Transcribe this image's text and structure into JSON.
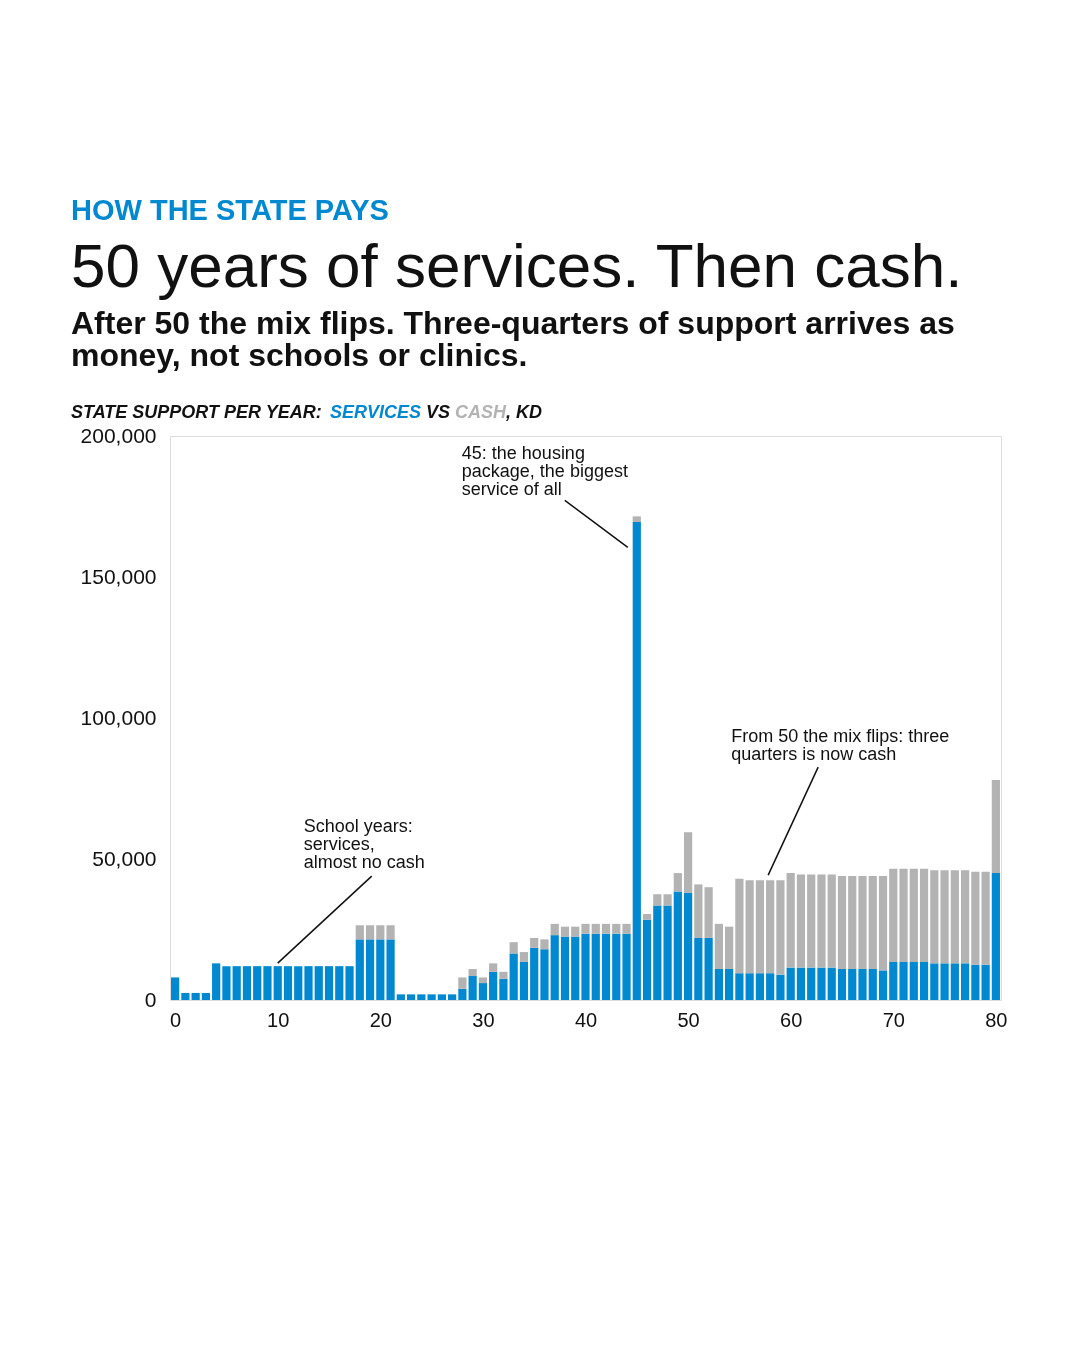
{
  "chart_data": {
    "type": "bar",
    "stacked": true,
    "title": "50 years of services. Then cash.",
    "subtitle": "After 50 the mix flips. Three-quarters of support arrives as\nmoney, not schools or clinics.",
    "ylabel": "STATE SUPPORT PER YEAR:",
    "legend": "top left",
    "x": [
      0,
      1,
      2,
      3,
      4,
      5,
      6,
      7,
      8,
      9,
      10,
      11,
      12,
      13,
      14,
      15,
      16,
      17,
      18,
      19,
      20,
      21,
      22,
      23,
      24,
      25,
      26,
      27,
      28,
      29,
      30,
      31,
      32,
      33,
      34,
      35,
      36,
      37,
      38,
      39,
      40,
      41,
      42,
      43,
      44,
      45,
      46,
      47,
      48,
      49,
      50,
      51,
      52,
      53,
      54,
      55,
      56,
      57,
      58,
      59,
      60,
      61,
      62,
      63,
      64,
      65,
      66,
      67,
      68,
      69,
      70,
      71,
      72,
      73,
      74,
      75,
      76,
      77,
      78,
      79,
      80
    ],
    "xlim": [
      -0.5,
      80.5
    ],
    "xticks": [
      0,
      10,
      20,
      30,
      40,
      50,
      60,
      70,
      80
    ],
    "ylim": [
      0,
      200000
    ],
    "yticks": [
      0,
      {
        "value": 50000,
        "label": "50,000"
      },
      {
        "value": 100000,
        "label": "100,000"
      },
      {
        "value": 150000,
        "label": "150,000"
      },
      {
        "value": 200000,
        "label": "200,000"
      }
    ],
    "series": [
      {
        "name": "SERVICES",
        "color": "#0088d1",
        "values": [
          8000,
          2500,
          2500,
          2500,
          13000,
          12000,
          12000,
          12000,
          12000,
          12000,
          12000,
          12000,
          12000,
          12000,
          12000,
          12000,
          12000,
          12000,
          21500,
          21500,
          21500,
          21500,
          2000,
          2000,
          2000,
          2000,
          2000,
          2000,
          4000,
          8500,
          6000,
          10000,
          7500,
          16500,
          13500,
          18500,
          18000,
          23000,
          22500,
          22500,
          23500,
          23500,
          23500,
          23500,
          23500,
          169500,
          28500,
          33500,
          33500,
          38500,
          38000,
          22000,
          22000,
          11000,
          11000,
          9500,
          9500,
          9500,
          9500,
          9000,
          11500,
          11500,
          11500,
          11500,
          11500,
          11000,
          11000,
          11000,
          11000,
          10500,
          13500,
          13500,
          13500,
          13500,
          13000,
          13000,
          13000,
          13000,
          12500,
          12500,
          45000
        ]
      },
      {
        "name": "CASH",
        "color": "#b3b3b3",
        "values": [
          0,
          0,
          0,
          0,
          0,
          0,
          0,
          0,
          0,
          0,
          0,
          0,
          0,
          0,
          0,
          0,
          0,
          0,
          5000,
          5000,
          5000,
          5000,
          0,
          0,
          0,
          0,
          0,
          0,
          4000,
          2500,
          2000,
          3000,
          2500,
          4000,
          3500,
          3500,
          3500,
          4000,
          3500,
          3500,
          3500,
          3500,
          3500,
          3500,
          3500,
          2000,
          2000,
          4000,
          4000,
          6500,
          21500,
          19000,
          18000,
          16000,
          15000,
          33500,
          33000,
          33000,
          33000,
          33500,
          33500,
          33000,
          33000,
          33000,
          33000,
          33000,
          33000,
          33000,
          33000,
          33500,
          33000,
          33000,
          33000,
          33000,
          33000,
          33000,
          33000,
          33000,
          33000,
          33000,
          33000
        ]
      }
    ],
    "annotations": [
      "HOW THE STATE PAYS",
      "VS",
      ", KD",
      {
        "text": "45: the housing\npackage, the biggest\nservice of all",
        "x": 45,
        "y": 171500
      },
      {
        "text": "School years:\nservices,\nalmost no cash",
        "x": 10,
        "y": 12000
      },
      {
        "text": "From 50 the mix flips: three\nquarters is now cash",
        "x": 58,
        "y": 42500
      }
    ]
  }
}
